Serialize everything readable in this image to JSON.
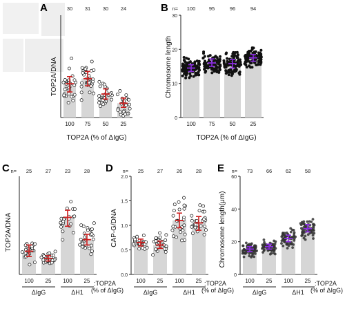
{
  "colors": {
    "bar": "#d6d6d6",
    "dot_fill": "#ffffff",
    "dot_dark": "#111111",
    "red": "#cc1f1f",
    "purple": "#8a2be2",
    "axis": "#222222",
    "thumb": "#c9c9c9"
  },
  "chart_data": [
    {
      "panel": "A",
      "type": "bar",
      "ylabel": "TOP2A/DNA",
      "xlabel": "TOP2A (% of ΔIgG)",
      "categories": [
        "100",
        "75",
        "50",
        "25"
      ],
      "n_prefix": "",
      "n_values": [
        "30",
        "31",
        "30",
        "24"
      ],
      "values": [
        1.65,
        1.9,
        1.15,
        0.7
      ],
      "error_low": [
        1.25,
        1.55,
        0.9,
        0.5
      ],
      "error_high": [
        2.0,
        2.25,
        1.4,
        0.95
      ],
      "ylim": [
        0,
        5
      ],
      "marker": "open",
      "error_color": "red",
      "groups": []
    },
    {
      "panel": "B",
      "type": "bar",
      "ylabel": "Chromosome length",
      "xlabel": "TOP2A (% of ΔIgG)",
      "categories": [
        "100",
        "75",
        "50",
        "25"
      ],
      "n_prefix": "n=",
      "n_values": [
        "100",
        "95",
        "96",
        "94"
      ],
      "values": [
        14.5,
        16.0,
        15.8,
        17.5
      ],
      "error_low": [
        13.5,
        15.0,
        14.5,
        16.5
      ],
      "error_high": [
        15.5,
        17.2,
        17.0,
        18.5
      ],
      "ylim": [
        0,
        30
      ],
      "yticks": [
        0,
        10,
        20,
        30
      ],
      "marker": "filled",
      "error_color": "purple",
      "groups": []
    },
    {
      "panel": "C",
      "type": "bar",
      "ylabel": "TOP2A/DNA",
      "xlabel_suffix": ":TOP2A",
      "xlabel_suffix2": "(% of ΔIgG)",
      "categories": [
        "100",
        "25",
        "100",
        "25"
      ],
      "n_prefix": "n=",
      "n_values": [
        "25",
        "27",
        "23",
        "28"
      ],
      "values": [
        1.3,
        0.9,
        3.2,
        1.95
      ],
      "error_low": [
        1.0,
        0.75,
        2.7,
        1.65
      ],
      "error_high": [
        1.65,
        1.05,
        3.6,
        2.25
      ],
      "ylim": [
        0,
        5.5
      ],
      "marker": "open",
      "error_color": "red",
      "groups": [
        "ΔIgG",
        "ΔH1"
      ]
    },
    {
      "panel": "D",
      "type": "bar",
      "ylabel": "CAP-G/DNA",
      "xlabel_suffix": ":TOP2A",
      "xlabel_suffix2": "(% of ΔIgG)",
      "categories": [
        "100",
        "25",
        "100",
        "25"
      ],
      "n_prefix": "n=",
      "n_values": [
        "25",
        "27",
        "26",
        "28"
      ],
      "values": [
        0.65,
        0.6,
        1.1,
        1.05
      ],
      "error_low": [
        0.58,
        0.53,
        0.95,
        0.9
      ],
      "error_high": [
        0.72,
        0.68,
        1.25,
        1.18
      ],
      "ylim": [
        0,
        2.0
      ],
      "yticks": [
        0.0,
        0.5,
        1.0,
        1.5,
        2.0
      ],
      "ytick_labels": [
        "0.0",
        "0.5",
        "1.0",
        "1.5",
        "2.0"
      ],
      "marker": "open",
      "error_color": "red",
      "groups": [
        "ΔIgG",
        "ΔH1"
      ]
    },
    {
      "panel": "E",
      "type": "bar",
      "ylabel": "Chromosome length(μm)",
      "xlabel_suffix": ":TOP2A",
      "xlabel_suffix2": "(% of ΔIgG)",
      "categories": [
        "100",
        "25",
        "100",
        "25"
      ],
      "n_prefix": "n=",
      "n_values": [
        "73",
        "66",
        "62",
        "58"
      ],
      "values": [
        15.5,
        17.0,
        22.0,
        28.0
      ],
      "error_low": [
        14.0,
        15.5,
        20.0,
        26.0
      ],
      "error_high": [
        17.0,
        18.5,
        24.0,
        30.5
      ],
      "ylim": [
        0,
        60
      ],
      "yticks": [
        0,
        20,
        40,
        60
      ],
      "marker": "dark",
      "error_color": "purple",
      "groups": [
        "ΔIgG",
        "ΔH1"
      ]
    }
  ]
}
